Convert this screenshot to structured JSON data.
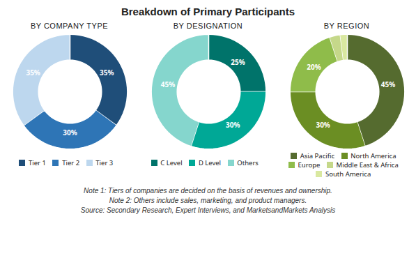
{
  "title": "Breakdown of Primary Participants",
  "annotations": [
    "Note 1: Tiers of companies are decided on the basis of revenues and ownership.",
    "Note 2: Others include sales, marketing, and product managers.",
    "Source: Secondary Research, Expert Interviews, and MarketsandMarkets  Analysis"
  ],
  "chart_data": [
    {
      "type": "pie",
      "title": "BY COMPANY TYPE",
      "categories": [
        "Tier 1",
        "Tier 2",
        "Tier 3"
      ],
      "values": [
        35,
        30,
        35
      ],
      "value_labels": [
        "35%",
        "30%",
        "35%"
      ],
      "colors": [
        "#1f4e79",
        "#2e75b6",
        "#bdd7ee"
      ],
      "data_labels": true,
      "legend": "bottom"
    },
    {
      "type": "pie",
      "title": "BY DESIGNATION",
      "categories": [
        "C Level",
        "D Level",
        "Others"
      ],
      "values": [
        25,
        30,
        45
      ],
      "value_labels": [
        "25%",
        "30%",
        "45%"
      ],
      "colors": [
        "#00736a",
        "#00a896",
        "#85d6cd"
      ],
      "data_labels": true,
      "legend": "bottom"
    },
    {
      "type": "pie",
      "title": "BY REGION",
      "categories": [
        "Asia Pacific",
        "North America",
        "Europe",
        "Middle East & Africa",
        "South America"
      ],
      "values": [
        45,
        30,
        20,
        3,
        2
      ],
      "value_labels": [
        "45%",
        "30%",
        "20%",
        null,
        null
      ],
      "colors": [
        "#556b2f",
        "#6b8e23",
        "#8fbc4a",
        "#c5d88a",
        "#d9e8a0"
      ],
      "data_labels": true,
      "legend": "bottom"
    }
  ]
}
